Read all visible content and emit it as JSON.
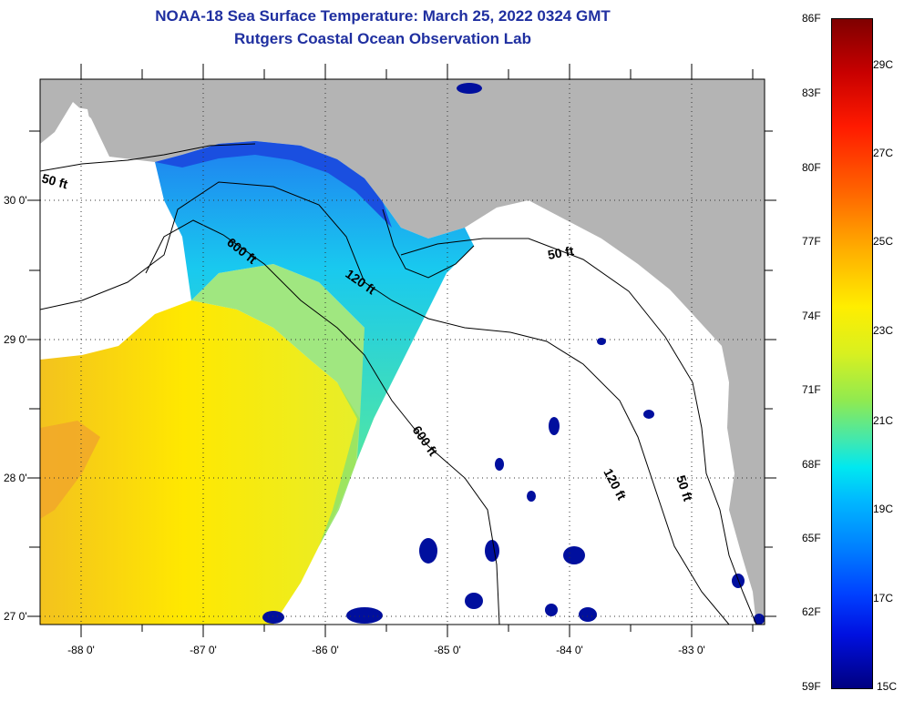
{
  "title": {
    "line1": "NOAA-18 Sea Surface Temperature:  March 25, 2022 0324 GMT",
    "line2": "Rutgers Coastal Ocean Observation Lab"
  },
  "map": {
    "lat_labels": [
      "30 0'",
      "29 0'",
      "28 0'",
      "27 0'"
    ],
    "lon_labels": [
      "-88 0'",
      "-87 0'",
      "-86 0'",
      "-85 0'",
      "-84 0'",
      "-83 0'"
    ],
    "contour_labels": {
      "c50_west": "50 ft",
      "c600_north": "600 ft",
      "c120_north": "120 ft",
      "c50_east": "50 ft",
      "c600_south": "600 ft",
      "c120_south": "120 ft",
      "c50_south": "50 ft"
    },
    "colors": {
      "land": "#b4b4b4",
      "no_data": "#ffffff",
      "warm_water": "#ffe800",
      "cool_water": "#1e90ff",
      "cold_patches": "#000f9e"
    }
  },
  "colorbar": {
    "fahrenheit": [
      "86F",
      "83F",
      "80F",
      "77F",
      "74F",
      "71F",
      "68F",
      "65F",
      "62F",
      "59F"
    ],
    "celsius": [
      "29C",
      "27C",
      "25C",
      "23C",
      "21C",
      "19C",
      "17C",
      "15C"
    ]
  }
}
